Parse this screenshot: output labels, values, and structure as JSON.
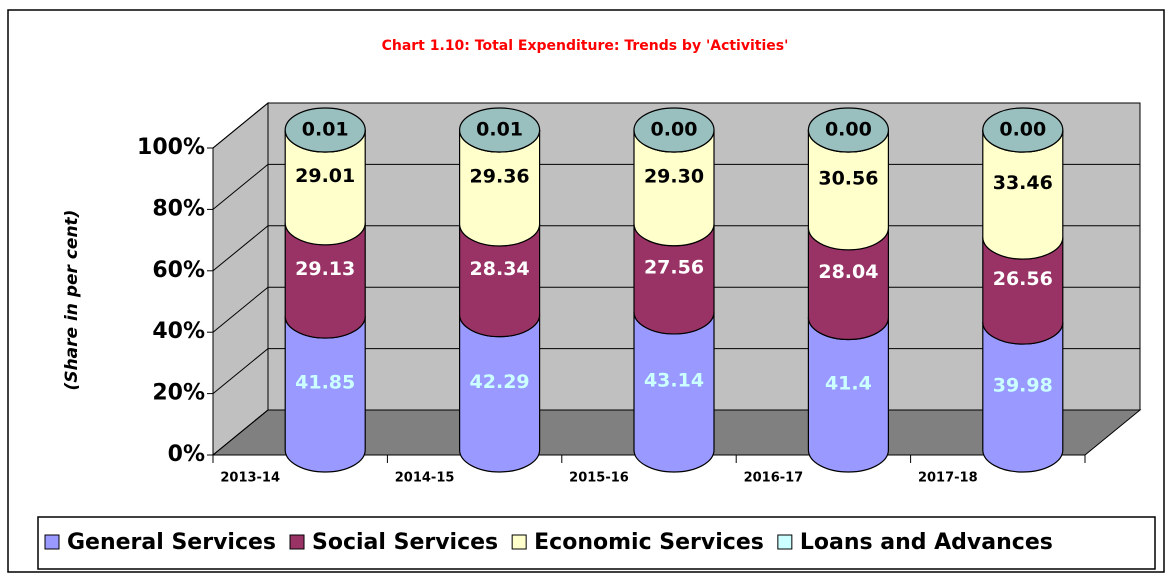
{
  "chart_data": {
    "type": "cylinder-stacked",
    "title": "Chart 1.10: Total Expenditure: Trends by 'Activities'",
    "y_label": "(Share in per cent)",
    "categories": [
      "2013-14",
      "2014-15",
      "2015-16",
      "2016-17",
      "2017-18"
    ],
    "series": [
      {
        "name": "General Services",
        "color": "#9999ff",
        "label_color": "#ccffff",
        "values": [
          41.85,
          42.29,
          43.14,
          41.4,
          39.98
        ]
      },
      {
        "name": "Social Services",
        "color": "#993366",
        "label_color": "#ffffff",
        "values": [
          29.13,
          28.34,
          27.56,
          28.04,
          26.56
        ]
      },
      {
        "name": "Economic Services",
        "color": "#ffffcc",
        "label_color": "#000000",
        "values": [
          29.01,
          29.36,
          29.3,
          30.56,
          33.46
        ],
        "value_labels": [
          "29.01",
          "29.36",
          "29.30",
          "30.56",
          "33.46"
        ]
      },
      {
        "name": "Loans and Advances",
        "color": "#ccffff",
        "label_color": "#000000",
        "values": [
          0.01,
          0.01,
          0,
          0,
          0
        ],
        "value_labels": [
          "0.01",
          "0.01",
          "0.00",
          "0.00",
          "0.00"
        ]
      }
    ],
    "ylim": [
      0,
      100
    ],
    "yticks": [
      {
        "value": 0,
        "label": "0%"
      },
      {
        "value": 20,
        "label": "20%"
      },
      {
        "value": 40,
        "label": "40%"
      },
      {
        "value": 60,
        "label": "60%"
      },
      {
        "value": 80,
        "label": "80%"
      },
      {
        "value": 100,
        "label": "100%"
      }
    ],
    "grid": true,
    "legend": "bottom"
  }
}
